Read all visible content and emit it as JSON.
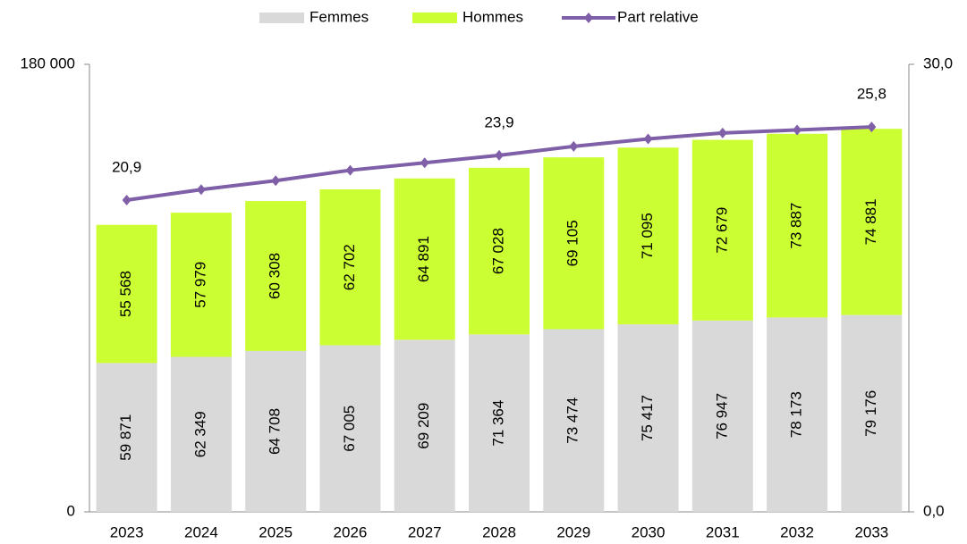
{
  "chart_data": {
    "type": "bar-line",
    "categories": [
      "2023",
      "2024",
      "2025",
      "2026",
      "2027",
      "2028",
      "2029",
      "2030",
      "2031",
      "2032",
      "2033"
    ],
    "series": [
      {
        "name": "Femmes",
        "type": "bar",
        "color": "#d9d9d9",
        "values": [
          59871,
          62349,
          64708,
          67005,
          69209,
          71364,
          73474,
          75417,
          76947,
          78173,
          79176
        ],
        "value_labels": [
          "59 871",
          "62 349",
          "64 708",
          "67 005",
          "69 209",
          "71 364",
          "73 474",
          "75 417",
          "76 947",
          "78 173",
          "79 176"
        ]
      },
      {
        "name": "Hommes",
        "type": "bar",
        "color": "#ccff33",
        "values": [
          55568,
          57979,
          60308,
          62702,
          64891,
          67028,
          69105,
          71095,
          72679,
          73887,
          74881
        ],
        "value_labels": [
          "55 568",
          "57 979",
          "60 308",
          "62 702",
          "64 891",
          "67 028",
          "69 105",
          "71 095",
          "72 679",
          "73 887",
          "74 881"
        ]
      },
      {
        "name": "Part relative",
        "type": "line",
        "axis": "y2",
        "color": "#7f5fa8",
        "values": [
          20.9,
          21.6,
          22.2,
          22.9,
          23.4,
          23.9,
          24.5,
          25.0,
          25.4,
          25.6,
          25.8
        ],
        "value_labels": [
          "20,9",
          null,
          null,
          null,
          null,
          "23,9",
          null,
          null,
          null,
          null,
          "25,8"
        ]
      }
    ],
    "ylim": [
      0,
      180000
    ],
    "yticks": [
      0,
      {
        "value": 180000,
        "label": "180 000"
      }
    ],
    "y2lim": [
      0,
      30
    ],
    "y2ticks": [
      {
        "value": 0,
        "label": "0,0"
      },
      {
        "value": 30,
        "label": "30,0"
      }
    ],
    "legend": "top"
  }
}
